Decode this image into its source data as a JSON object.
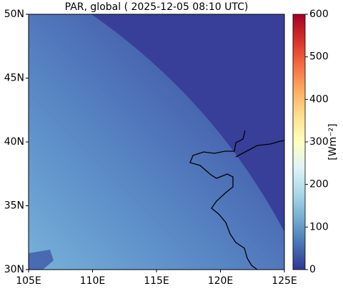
{
  "chart_data": {
    "type": "map",
    "title": "PAR, global ( 2025-12-05 08:10 UTC)",
    "xlim": [
      105,
      125
    ],
    "xticks": [
      {
        "value": 105,
        "label": "105E"
      },
      {
        "value": 110,
        "label": "110E"
      },
      {
        "value": 115,
        "label": "115E"
      },
      {
        "value": 120,
        "label": "120E"
      },
      {
        "value": 125,
        "label": "125E"
      }
    ],
    "ylim": [
      30,
      50
    ],
    "yticks": [
      {
        "value": 30,
        "label": "30N"
      },
      {
        "value": 35,
        "label": "35N"
      },
      {
        "value": 40,
        "label": "40N"
      },
      {
        "value": 45,
        "label": "45N"
      },
      {
        "value": 50,
        "label": "50N"
      }
    ],
    "colorbar": {
      "label": "[Wm⁻²]",
      "lim": [
        0,
        600
      ],
      "ticks": [
        0,
        100,
        200,
        300,
        400,
        500,
        600
      ]
    }
  }
}
